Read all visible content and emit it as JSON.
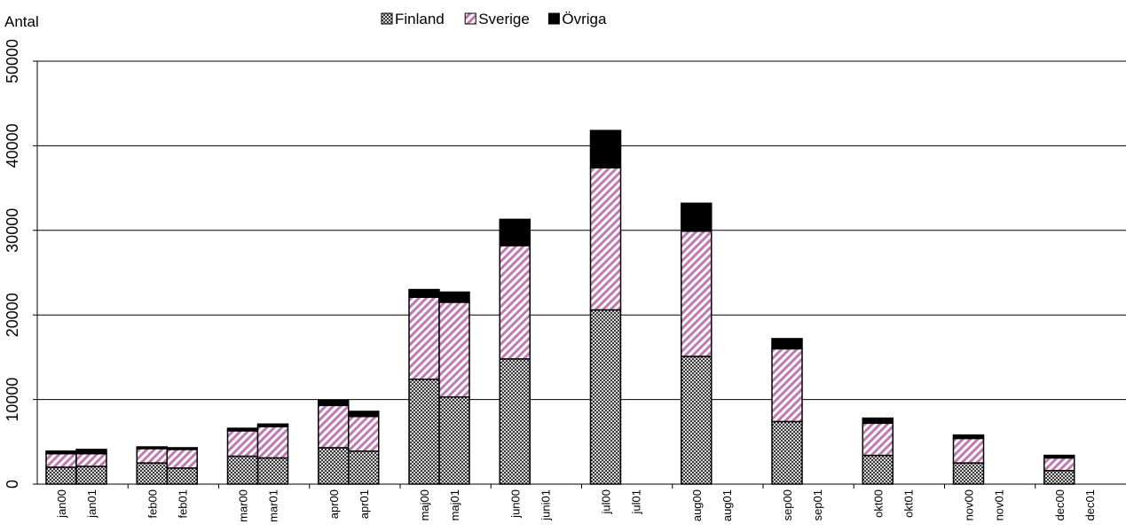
{
  "chart_data": {
    "type": "bar",
    "stacked": true,
    "ylabel": "Antal",
    "ylim": [
      0,
      50000
    ],
    "yticks": [
      0,
      10000,
      20000,
      30000,
      40000,
      50000
    ],
    "grid": "horizontal",
    "legend_position": "top-center",
    "categories": [
      "jan00",
      "jan01",
      "feb00",
      "feb01",
      "mar00",
      "mar01",
      "apr00",
      "apr01",
      "maj00",
      "maj01",
      "jun00",
      "juni01",
      "jul00",
      "jul01",
      "aug00",
      "aug01",
      "sep00",
      "sep01",
      "okt00",
      "okt01",
      "nov00",
      "nov01",
      "dec00",
      "dec01"
    ],
    "series": [
      {
        "name": "Finland",
        "color": "#6f6f6f",
        "pattern": "checker",
        "values": [
          2000,
          2100,
          2500,
          1900,
          3300,
          3100,
          4300,
          3900,
          12400,
          10300,
          14800,
          0,
          20600,
          0,
          15100,
          0,
          7400,
          0,
          3400,
          0,
          2500,
          0,
          1600,
          0
        ]
      },
      {
        "name": "Sverige",
        "color": "#c07ab0",
        "pattern": "diagonal",
        "values": [
          1600,
          1500,
          1700,
          2200,
          3000,
          3700,
          5000,
          4100,
          9700,
          11200,
          13400,
          0,
          16800,
          0,
          14800,
          0,
          8600,
          0,
          3800,
          0,
          2900,
          0,
          1500,
          0
        ]
      },
      {
        "name": "Övriga",
        "color": "#000000",
        "pattern": "solid",
        "values": [
          300,
          500,
          200,
          200,
          300,
          300,
          600,
          600,
          900,
          1200,
          3100,
          0,
          4400,
          0,
          3300,
          0,
          1200,
          0,
          600,
          0,
          400,
          0,
          300,
          0
        ]
      }
    ]
  }
}
